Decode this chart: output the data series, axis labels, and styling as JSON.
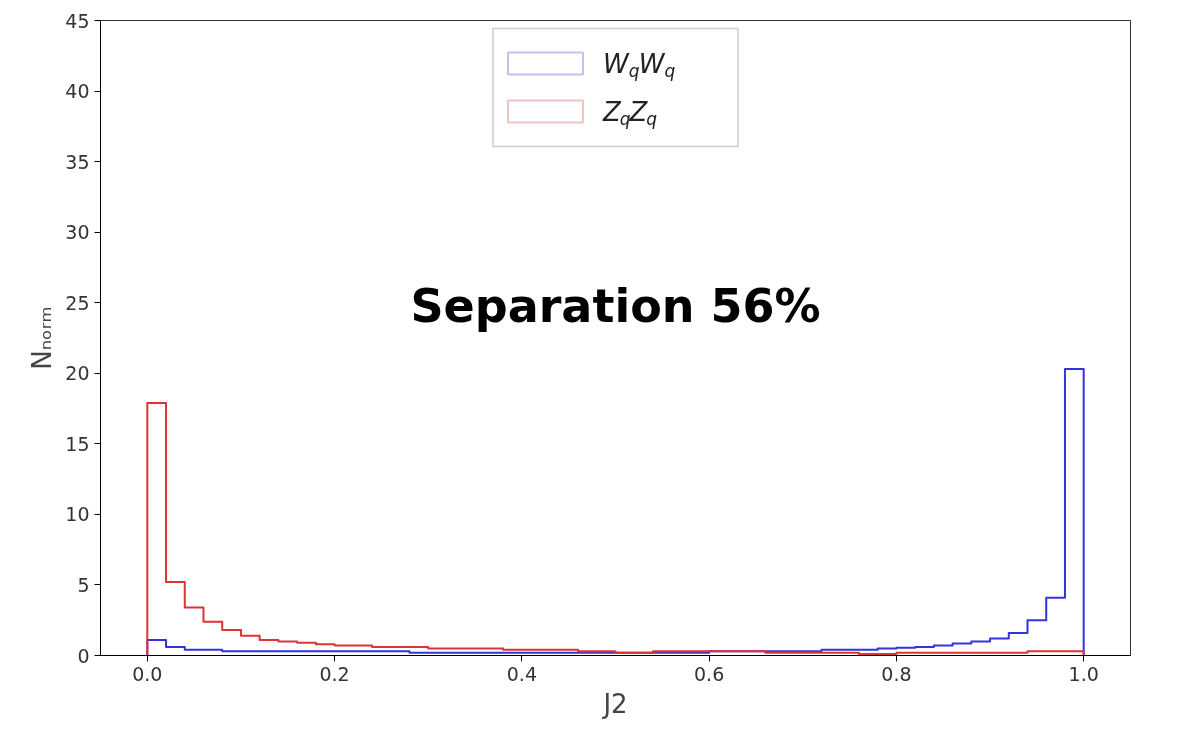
{
  "chart_data": {
    "type": "histogram",
    "xlabel": "J2",
    "ylabel": "Nₙₒᵣₘ",
    "annotations": [
      "Separation 56%"
    ],
    "bins": [
      0.0,
      0.02,
      0.04,
      0.06,
      0.08,
      0.1,
      0.12,
      0.14,
      0.16,
      0.18,
      0.2,
      0.22,
      0.24,
      0.26,
      0.28,
      0.3,
      0.32,
      0.34,
      0.36,
      0.38,
      0.4,
      0.42,
      0.44,
      0.46,
      0.48,
      0.5,
      0.52,
      0.54,
      0.56,
      0.58,
      0.6,
      0.62,
      0.64,
      0.66,
      0.68,
      0.7,
      0.72,
      0.74,
      0.76,
      0.78,
      0.8,
      0.82,
      0.84,
      0.86,
      0.88,
      0.9,
      0.92,
      0.94,
      0.96,
      0.98,
      1.0
    ],
    "series": [
      {
        "name": "W$_{q}$W$_{q}$",
        "color": "#3333dd",
        "values": [
          1.1,
          0.6,
          0.4,
          0.4,
          0.3,
          0.3,
          0.3,
          0.3,
          0.3,
          0.3,
          0.3,
          0.3,
          0.3,
          0.3,
          0.2,
          0.2,
          0.2,
          0.2,
          0.2,
          0.2,
          0.2,
          0.2,
          0.2,
          0.2,
          0.2,
          0.2,
          0.2,
          0.2,
          0.2,
          0.2,
          0.3,
          0.3,
          0.3,
          0.3,
          0.3,
          0.3,
          0.4,
          0.4,
          0.4,
          0.5,
          0.55,
          0.6,
          0.7,
          0.85,
          1.0,
          1.2,
          1.6,
          2.5,
          4.1,
          20.3
        ]
      },
      {
        "name": "Z$_{q}$Z$_{q}$",
        "color": "#dd3333",
        "values": [
          17.9,
          5.2,
          3.4,
          2.4,
          1.8,
          1.4,
          1.1,
          1.0,
          0.9,
          0.8,
          0.7,
          0.7,
          0.6,
          0.6,
          0.6,
          0.5,
          0.5,
          0.5,
          0.5,
          0.4,
          0.4,
          0.4,
          0.4,
          0.3,
          0.3,
          0.2,
          0.2,
          0.3,
          0.3,
          0.3,
          0.3,
          0.3,
          0.3,
          0.2,
          0.2,
          0.2,
          0.2,
          0.2,
          0.1,
          0.1,
          0.2,
          0.2,
          0.2,
          0.2,
          0.2,
          0.2,
          0.2,
          0.3,
          0.3,
          0.3
        ]
      }
    ],
    "xlim": [
      -0.05,
      1.05
    ],
    "ylim": [
      0,
      45
    ],
    "xticks": [
      {
        "value": 0.0,
        "label": "0.0"
      },
      0.2,
      0.4,
      0.6,
      0.8,
      {
        "value": 1.0,
        "label": "1.0"
      }
    ],
    "yticks": [
      0,
      5,
      10,
      15,
      20,
      25,
      30,
      35,
      40,
      45
    ],
    "grid": false,
    "legend": "top"
  }
}
